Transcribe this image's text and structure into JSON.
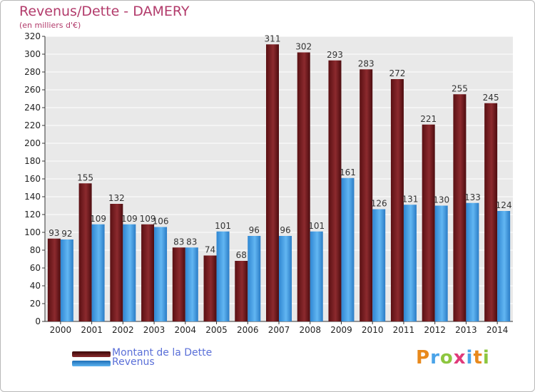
{
  "chart_data": {
    "type": "bar",
    "title": "Revenus/Dette - DAMERY",
    "subtitle": "(en milliers d'€)",
    "categories": [
      "2000",
      "2001",
      "2002",
      "2003",
      "2004",
      "2005",
      "2006",
      "2007",
      "2008",
      "2009",
      "2010",
      "2011",
      "2012",
      "2013",
      "2014"
    ],
    "series": [
      {
        "name": "Montant de la Dette",
        "values": [
          93,
          155,
          132,
          109,
          83,
          74,
          68,
          311,
          302,
          293,
          283,
          272,
          221,
          255,
          245
        ],
        "color": "#7d1f22"
      },
      {
        "name": "Revenus",
        "values": [
          92,
          109,
          109,
          106,
          83,
          101,
          96,
          96,
          101,
          161,
          126,
          131,
          130,
          133,
          124
        ],
        "color": "#4aa3e8"
      }
    ],
    "ylim": [
      0,
      320
    ],
    "ytick_step": 20,
    "grid": true,
    "legend_position": "bottom-left"
  },
  "logo": {
    "text": "Proxiti",
    "letter_colors": [
      "#e8891c",
      "#4aa3e8",
      "#8dc63f",
      "#e03a7a",
      "#4aa3e8",
      "#e8891c",
      "#8dc63f"
    ]
  }
}
